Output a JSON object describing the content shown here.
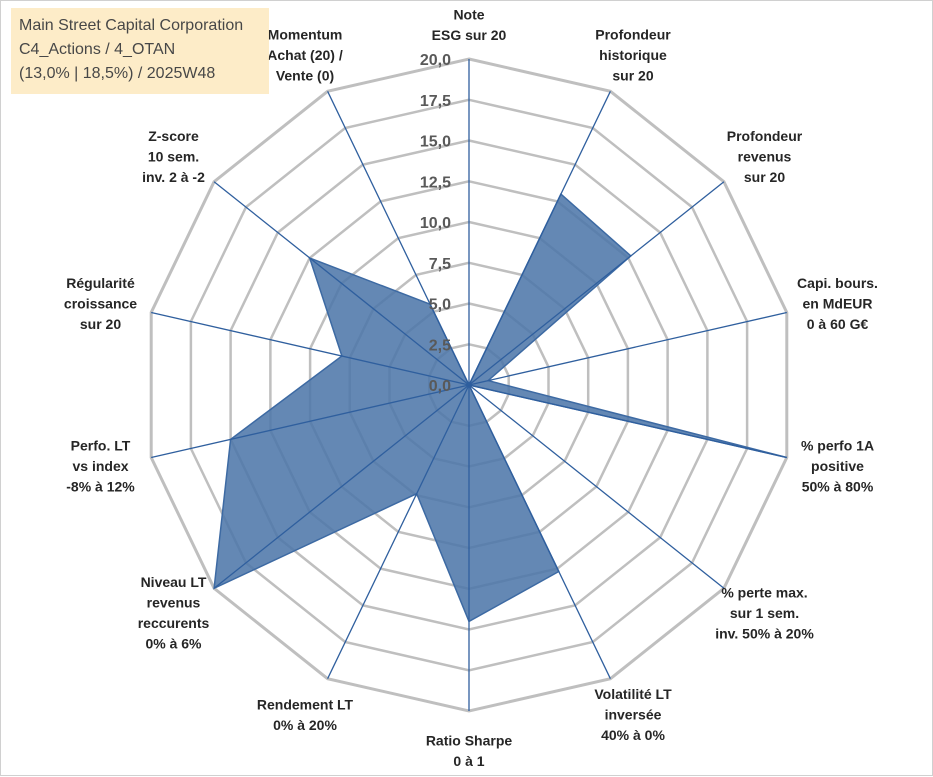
{
  "info": {
    "company": "Main Street Capital Corporation",
    "classification": "C4_Actions / 4_OTAN",
    "stats": "(13,0% | 18,5%) / 2025W48"
  },
  "chart_data": {
    "type": "radar",
    "title": "Main Street Capital Corporation",
    "range": [
      0,
      20
    ],
    "tick_values": [
      0,
      2.5,
      5,
      7.5,
      10,
      12.5,
      15,
      17.5,
      20
    ],
    "tick_labels": [
      "0,0",
      "2,5",
      "5,0",
      "7,5",
      "10,0",
      "12,5",
      "15,0",
      "17,5",
      "20,0"
    ],
    "axes": [
      {
        "label": [
          "Note",
          "ESG sur 20"
        ],
        "value": 0
      },
      {
        "label": [
          "Profondeur",
          "historique",
          "sur 20"
        ],
        "value": 13.0
      },
      {
        "label": [
          "Profondeur",
          "revenus",
          "sur 20"
        ],
        "value": 12.7
      },
      {
        "label": [
          "Capi. bours.",
          "en MdEUR",
          "0 à 60 G€"
        ],
        "value": 1.2
      },
      {
        "label": [
          "% perfo 1A",
          "positive",
          "50% à 80%"
        ],
        "value": 20.0
      },
      {
        "label": [
          "% perte max.",
          "sur 1 sem.",
          "inv. 50% à 20%"
        ],
        "value": 0
      },
      {
        "label": [
          "Volatilité LT",
          "inversée",
          "40% à 0%"
        ],
        "value": 12.7
      },
      {
        "label": [
          "Ratio Sharpe",
          "0 à 1"
        ],
        "value": 14.5
      },
      {
        "label": [
          "Rendement LT",
          "0% à 20%"
        ],
        "value": 7.4
      },
      {
        "label": [
          "Niveau LT",
          "revenus",
          "reccurents",
          "0% à 6%"
        ],
        "value": 20.0
      },
      {
        "label": [
          "Perfo. LT",
          "vs index",
          "-8% à 12%"
        ],
        "value": 15.0
      },
      {
        "label": [
          "Régularité",
          "croissance",
          "sur 20"
        ],
        "value": 8.0
      },
      {
        "label": [
          "Z-score",
          "10 sem.",
          "inv. 2 à -2"
        ],
        "value": 12.5
      },
      {
        "label": [
          "Momentum",
          "Achat (20) /",
          "Vente (0)"
        ],
        "value": 5.5
      }
    ],
    "series": [
      {
        "name": "Main Street Capital Corporation",
        "color": "#4f77aa"
      }
    ],
    "colors": {
      "grid": "#bfbfbf",
      "spoke": "#2f5f9e",
      "fill": "#4f77aa",
      "fill_stroke": "#3d6aa3"
    }
  }
}
